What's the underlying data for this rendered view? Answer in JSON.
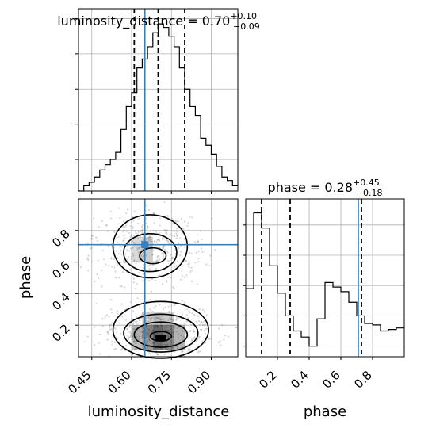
{
  "chart_data": {
    "type": "corner",
    "parameters": [
      "luminosity_distance",
      "phase"
    ],
    "truths": {
      "luminosity_distance": 0.65,
      "phase": 0.71
    },
    "colors": {
      "truth": "#3b7fb6",
      "hist": "#000000",
      "grid": "#b0b0b0",
      "density": "#000000"
    },
    "grid": true,
    "panels": {
      "luminosity_distance_hist": {
        "title": {
          "prefix": "luminosity_distance = ",
          "value": "0.70",
          "plus": "+0.10",
          "minus": "−0.09"
        },
        "xlim": [
          0.4,
          1.0
        ],
        "quantiles": [
          0.61,
          0.7,
          0.8
        ],
        "bin_edges": [
          0.4,
          0.42,
          0.44,
          0.46,
          0.48,
          0.5,
          0.52,
          0.54,
          0.56,
          0.58,
          0.6,
          0.62,
          0.64,
          0.66,
          0.68,
          0.7,
          0.72,
          0.74,
          0.76,
          0.78,
          0.8,
          0.82,
          0.84,
          0.86,
          0.88,
          0.9,
          0.92,
          0.94,
          0.96,
          0.98,
          1.0
        ],
        "counts": [
          0,
          3,
          5,
          8,
          12,
          15,
          18,
          22,
          35,
          48,
          56,
          70,
          75,
          82,
          90,
          95,
          93,
          88,
          82,
          70,
          58,
          48,
          43,
          30,
          26,
          21,
          14,
          8,
          6,
          3
        ]
      },
      "phase_hist": {
        "title": {
          "prefix": "phase = ",
          "value": "0.28",
          "plus": "+0.45",
          "minus": "−0.18"
        },
        "xlim": [
          0.0,
          1.0
        ],
        "xticks": [
          "0.2",
          "0.4",
          "0.6",
          "0.8"
        ],
        "quantiles": [
          0.1,
          0.28,
          0.73
        ],
        "bin_edges": [
          0.0,
          0.05,
          0.1,
          0.15,
          0.2,
          0.25,
          0.3,
          0.35,
          0.4,
          0.45,
          0.5,
          0.55,
          0.6,
          0.65,
          0.7,
          0.75,
          0.8,
          0.85,
          0.9,
          0.95,
          1.0
        ],
        "counts": [
          45,
          95,
          85,
          60,
          42,
          27,
          17,
          13,
          7,
          25,
          49,
          46,
          43,
          36,
          27,
          22,
          21,
          17,
          18,
          19
        ]
      },
      "joint": {
        "xlim": [
          0.4,
          1.0
        ],
        "ylim": [
          0.0,
          1.0
        ],
        "xticks": [
          "0.45",
          "0.60",
          "0.75",
          "0.90"
        ],
        "yticks": [
          "0.2",
          "0.4",
          "0.6",
          "0.8"
        ],
        "xlabel": "luminosity_distance",
        "ylabel": "phase"
      }
    },
    "xlabel_right": "phase"
  }
}
